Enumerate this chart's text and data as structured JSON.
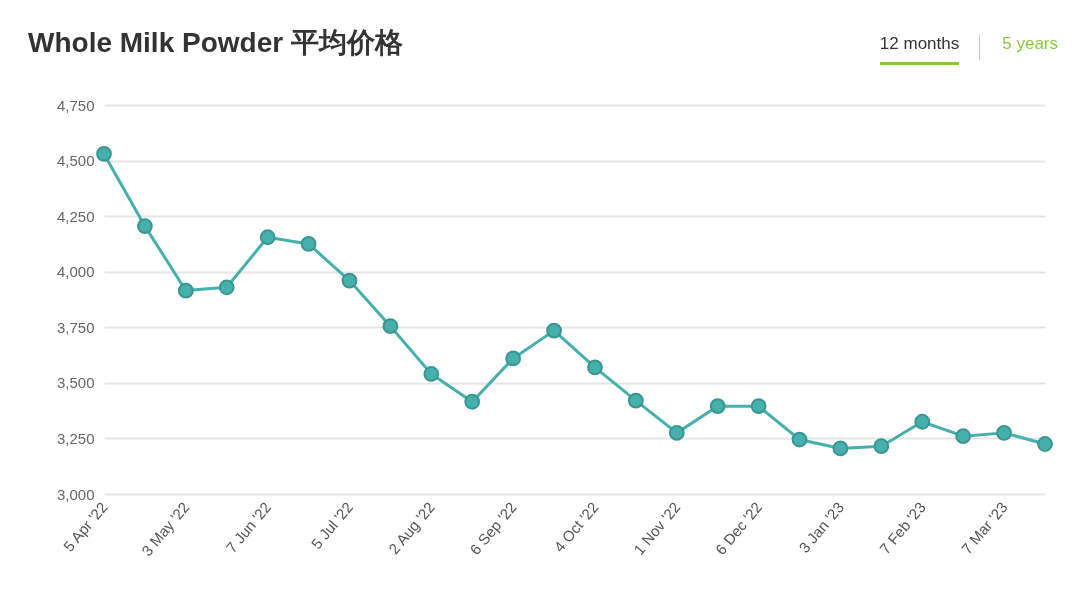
{
  "chart_data": {
    "type": "line",
    "title": "Whole Milk Powder 平均价格",
    "annotations": [
      "12 months",
      "5 years"
    ],
    "categories": [
      "5 Apr '22",
      null,
      "3 May '22",
      null,
      "7 Jun '22",
      null,
      "5 Jul '22",
      null,
      "2 Aug '22",
      null,
      "6 Sep '22",
      null,
      "4 Oct '22",
      null,
      "1 Nov '22",
      null,
      "6 Dec '22",
      null,
      "3 Jan '23",
      null,
      "7 Feb '23",
      null,
      "7 Mar '23",
      null
    ],
    "series": [
      {
        "color": "#45b0ac",
        "values": [
          4530,
          4205,
          3915,
          3930,
          4155,
          4125,
          3960,
          3755,
          3540,
          3415,
          3610,
          3735,
          3570,
          3420,
          3275,
          3395,
          3395,
          3245,
          3205,
          3215,
          3325,
          3260,
          3275,
          3225
        ]
      }
    ],
    "ylim": [
      3000,
      4750
    ],
    "yticks": [
      {
        "value": 3000,
        "label": "3,000"
      },
      {
        "value": 3250,
        "label": "3,250"
      },
      {
        "value": 3500,
        "label": "3,500"
      },
      {
        "value": 3750,
        "label": "3,750"
      },
      {
        "value": 4000,
        "label": "4,000"
      },
      {
        "value": 4250,
        "label": "4,250"
      },
      {
        "value": 4500,
        "label": "4,500"
      },
      {
        "value": 4750,
        "label": "4,750"
      }
    ],
    "grid": "y",
    "marker": "circle"
  }
}
